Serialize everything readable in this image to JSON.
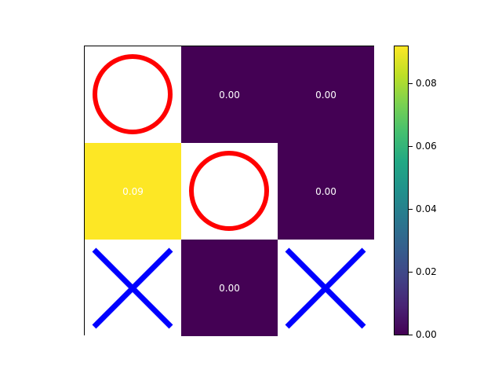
{
  "board": {
    "cells": [
      {
        "row": 0,
        "col": 0,
        "piece": "O",
        "value": null,
        "value_label": ""
      },
      {
        "row": 0,
        "col": 1,
        "piece": "",
        "value": 0.0,
        "value_label": "0.00"
      },
      {
        "row": 0,
        "col": 2,
        "piece": "",
        "value": 0.0,
        "value_label": "0.00"
      },
      {
        "row": 1,
        "col": 0,
        "piece": "",
        "value": 0.09,
        "value_label": "0.09"
      },
      {
        "row": 1,
        "col": 1,
        "piece": "O",
        "value": null,
        "value_label": ""
      },
      {
        "row": 1,
        "col": 2,
        "piece": "",
        "value": 0.0,
        "value_label": "0.00"
      },
      {
        "row": 2,
        "col": 0,
        "piece": "X",
        "value": null,
        "value_label": ""
      },
      {
        "row": 2,
        "col": 1,
        "piece": "",
        "value": 0.0,
        "value_label": "0.00"
      },
      {
        "row": 2,
        "col": 2,
        "piece": "X",
        "value": null,
        "value_label": ""
      }
    ]
  },
  "colors": {
    "o_piece": "#ff0000",
    "x_piece": "#0000ff",
    "low_value": "#440154",
    "high_value": "#fde725"
  },
  "colorbar": {
    "min": 0.0,
    "max": 0.092,
    "ticks": [
      "0.00",
      "0.02",
      "0.04",
      "0.06",
      "0.08"
    ]
  }
}
